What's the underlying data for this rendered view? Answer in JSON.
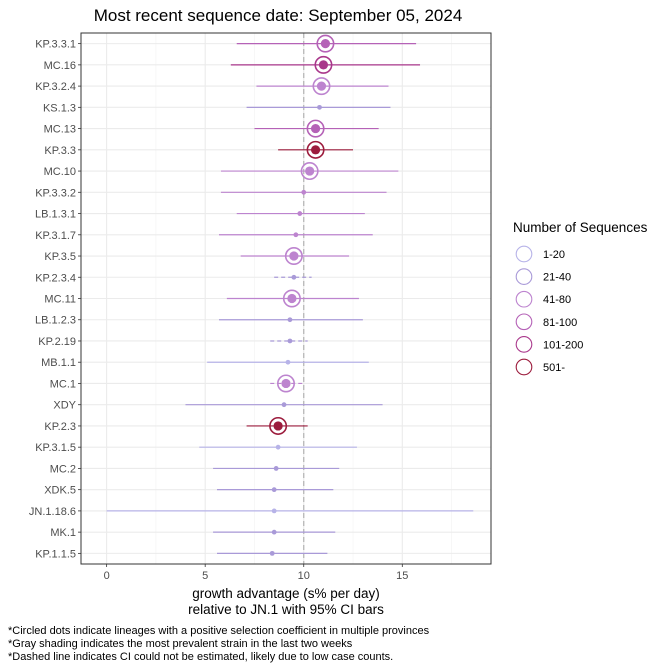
{
  "chart_data": {
    "type": "scatter",
    "title": "Most recent sequence date: September 05, 2024",
    "xlabel_line1": "growth advantage (s% per day)",
    "xlabel_line2": "relative to  JN.1  with 95% CI bars",
    "xlim": [
      -1.3,
      19.5
    ],
    "xticks": [
      0,
      5,
      10,
      15
    ],
    "reference_line_x": 10,
    "grid": true,
    "legend": {
      "title": "Number of Sequences",
      "position": "right",
      "entries": [
        {
          "label": "1-20",
          "color": "#b7b3e8"
        },
        {
          "label": "21-40",
          "color": "#a99ad8"
        },
        {
          "label": "41-80",
          "color": "#bd84cf"
        },
        {
          "label": "81-100",
          "color": "#b562b7"
        },
        {
          "label": "101-200",
          "color": "#a9378b"
        },
        {
          "label": "501-",
          "color": "#9c1c3d"
        }
      ]
    },
    "series": [
      {
        "name": "KP.3.3.1",
        "value": 11.1,
        "ci": [
          6.6,
          15.7
        ],
        "count_bin": 3,
        "circled": true,
        "dashed": false
      },
      {
        "name": "MC.16",
        "value": 11.0,
        "ci": [
          6.3,
          15.9
        ],
        "count_bin": 4,
        "circled": true,
        "dashed": false
      },
      {
        "name": "KP.3.2.4",
        "value": 10.9,
        "ci": [
          7.6,
          14.3
        ],
        "count_bin": 2,
        "circled": true,
        "dashed": false
      },
      {
        "name": "KS.1.3",
        "value": 10.8,
        "ci": [
          7.1,
          14.4
        ],
        "count_bin": 1,
        "circled": false,
        "dashed": false
      },
      {
        "name": "MC.13",
        "value": 10.6,
        "ci": [
          7.5,
          13.8
        ],
        "count_bin": 3,
        "circled": true,
        "dashed": false
      },
      {
        "name": "KP.3.3",
        "value": 10.6,
        "ci": [
          8.7,
          12.5
        ],
        "count_bin": 5,
        "circled": true,
        "dashed": false
      },
      {
        "name": "MC.10",
        "value": 10.3,
        "ci": [
          5.8,
          14.8
        ],
        "count_bin": 2,
        "circled": true,
        "dashed": false
      },
      {
        "name": "KP.3.3.2",
        "value": 10.0,
        "ci": [
          5.8,
          14.2
        ],
        "count_bin": 2,
        "circled": false,
        "dashed": false
      },
      {
        "name": "LB.1.3.1",
        "value": 9.8,
        "ci": [
          6.6,
          13.1
        ],
        "count_bin": 2,
        "circled": false,
        "dashed": false
      },
      {
        "name": "KP.3.1.7",
        "value": 9.6,
        "ci": [
          5.7,
          13.5
        ],
        "count_bin": 2,
        "circled": false,
        "dashed": false
      },
      {
        "name": "KP.3.5",
        "value": 9.5,
        "ci": [
          6.8,
          12.3
        ],
        "count_bin": 2,
        "circled": true,
        "dashed": false
      },
      {
        "name": "KP.2.3.4",
        "value": 9.5,
        "ci": [
          8.5,
          10.4
        ],
        "count_bin": 1,
        "circled": false,
        "dashed": true
      },
      {
        "name": "MC.11",
        "value": 9.4,
        "ci": [
          6.1,
          12.8
        ],
        "count_bin": 2,
        "circled": true,
        "dashed": false
      },
      {
        "name": "LB.1.2.3",
        "value": 9.3,
        "ci": [
          5.7,
          13.0
        ],
        "count_bin": 1,
        "circled": false,
        "dashed": false
      },
      {
        "name": "KP.2.19",
        "value": 9.3,
        "ci": [
          8.3,
          10.2
        ],
        "count_bin": 1,
        "circled": false,
        "dashed": true
      },
      {
        "name": "MB.1.1",
        "value": 9.2,
        "ci": [
          5.1,
          13.3
        ],
        "count_bin": 0,
        "circled": false,
        "dashed": false
      },
      {
        "name": "MC.1",
        "value": 9.1,
        "ci": [
          8.3,
          10.0
        ],
        "count_bin": 2,
        "circled": true,
        "dashed": true
      },
      {
        "name": "XDY",
        "value": 9.0,
        "ci": [
          4.0,
          14.0
        ],
        "count_bin": 1,
        "circled": false,
        "dashed": false
      },
      {
        "name": "KP.2.3",
        "value": 8.7,
        "ci": [
          7.1,
          10.2
        ],
        "count_bin": 5,
        "circled": true,
        "dashed": false
      },
      {
        "name": "KP.3.1.5",
        "value": 8.7,
        "ci": [
          4.7,
          12.7
        ],
        "count_bin": 0,
        "circled": false,
        "dashed": false
      },
      {
        "name": "MC.2",
        "value": 8.6,
        "ci": [
          5.4,
          11.8
        ],
        "count_bin": 1,
        "circled": false,
        "dashed": false
      },
      {
        "name": "XDK.5",
        "value": 8.5,
        "ci": [
          5.6,
          11.5
        ],
        "count_bin": 1,
        "circled": false,
        "dashed": false
      },
      {
        "name": "JN.1.18.6",
        "value": 8.5,
        "ci": [
          0.0,
          18.6
        ],
        "count_bin": 0,
        "circled": false,
        "dashed": false
      },
      {
        "name": "MK.1",
        "value": 8.5,
        "ci": [
          5.4,
          11.6
        ],
        "count_bin": 1,
        "circled": false,
        "dashed": false
      },
      {
        "name": "KP.1.1.5",
        "value": 8.4,
        "ci": [
          5.6,
          11.2
        ],
        "count_bin": 1,
        "circled": false,
        "dashed": false
      }
    ]
  },
  "footnotes": [
    "*Circled dots indicate lineages with a positive selection coefficient in multiple provinces",
    "*Gray shading indicates the most prevalent strain in the last two weeks",
    "*Dashed line indicates CI could not be estimated, likely due to low case counts."
  ]
}
